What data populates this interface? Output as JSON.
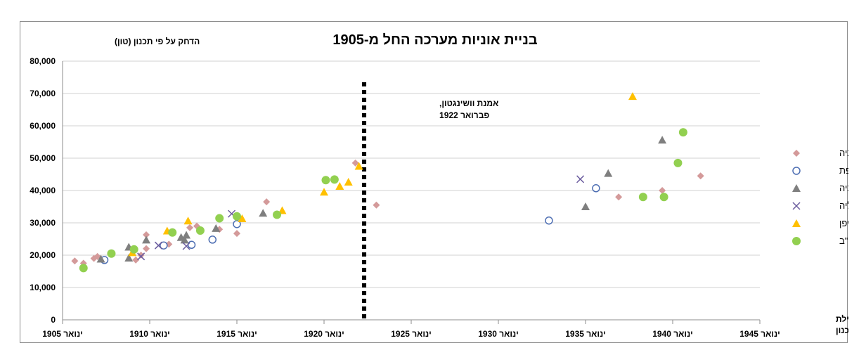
{
  "chart_data": {
    "type": "scatter",
    "title": "בניית אוניות מערכה החל מ-1905",
    "ylabel": "הדחק על פי תכנון (טון)",
    "xlabel": "חודש תחילת בנייה או תכנון",
    "ylim": [
      0,
      80000
    ],
    "yticks": [
      0,
      10000,
      20000,
      30000,
      40000,
      50000,
      60000,
      70000,
      80000
    ],
    "ytick_labels": [
      "0",
      "10,000",
      "20,000",
      "30,000",
      "40,000",
      "50,000",
      "60,000",
      "70,000",
      "80,000"
    ],
    "xlim": [
      1905,
      1945
    ],
    "xticks": [
      1905,
      1910,
      1915,
      1920,
      1925,
      1930,
      1935,
      1940,
      1945
    ],
    "xtick_labels": [
      "ינואר 1905",
      "ינואר 1910",
      "ינואר 1915",
      "ינואר 1920",
      "ינואר 1925",
      "ינואר 1930",
      "ינואר 1935",
      "ינואר 1940",
      "ינואר 1945"
    ],
    "grid": true,
    "legend_position": "right",
    "annotation": {
      "x": 1922.3,
      "lines": [
        "אמנת וושינגטון,",
        "פברואר 1922"
      ]
    },
    "series": [
      {
        "name": "בריטניה",
        "marker": "diamond",
        "color": "#d49a9a",
        "points": [
          [
            1905.7,
            18200
          ],
          [
            1906.2,
            17500
          ],
          [
            1906.8,
            19000
          ],
          [
            1907.0,
            19600
          ],
          [
            1909.2,
            18500
          ],
          [
            1909.5,
            20000
          ],
          [
            1909.8,
            22000
          ],
          [
            1909.8,
            26300
          ],
          [
            1911.1,
            23400
          ],
          [
            1912.3,
            28500
          ],
          [
            1912.7,
            29000
          ],
          [
            1914.0,
            28000
          ],
          [
            1915.0,
            26700
          ],
          [
            1916.7,
            36500
          ],
          [
            1921.8,
            48500
          ],
          [
            1923.0,
            35500
          ],
          [
            1936.9,
            38000
          ],
          [
            1939.4,
            40000
          ],
          [
            1941.6,
            44500
          ]
        ]
      },
      {
        "name": "צרפת",
        "marker": "circle-open",
        "color": "#4e6fb3",
        "points": [
          [
            1907.4,
            18500
          ],
          [
            1910.8,
            23000
          ],
          [
            1912.4,
            23200
          ],
          [
            1913.6,
            24800
          ],
          [
            1915.0,
            29600
          ],
          [
            1932.9,
            30700
          ],
          [
            1935.6,
            40700
          ]
        ]
      },
      {
        "name": "גרמניה",
        "marker": "triangle",
        "color": "#7f7f7f",
        "points": [
          [
            1907.2,
            18800
          ],
          [
            1908.8,
            19100
          ],
          [
            1908.8,
            22500
          ],
          [
            1909.8,
            24700
          ],
          [
            1912.0,
            24700
          ],
          [
            1912.1,
            26200
          ],
          [
            1911.8,
            25500
          ],
          [
            1913.8,
            28300
          ],
          [
            1916.5,
            33000
          ],
          [
            1935.0,
            35000
          ],
          [
            1936.3,
            45300
          ],
          [
            1939.4,
            55600
          ]
        ]
      },
      {
        "name": "איטליה",
        "marker": "x",
        "color": "#6a5b9e",
        "points": [
          [
            1909.5,
            19600
          ],
          [
            1910.5,
            23000
          ],
          [
            1912.1,
            22800
          ],
          [
            1914.7,
            32800
          ],
          [
            1934.7,
            43500
          ]
        ]
      },
      {
        "name": "יפן",
        "marker": "triangle",
        "color": "#ffc000",
        "points": [
          [
            1909.0,
            20800
          ],
          [
            1911.0,
            27500
          ],
          [
            1912.2,
            30600
          ],
          [
            1915.3,
            31300
          ],
          [
            1917.6,
            33800
          ],
          [
            1920.0,
            39500
          ],
          [
            1920.9,
            41300
          ],
          [
            1921.4,
            42600
          ],
          [
            1922.0,
            47500
          ],
          [
            1937.7,
            69100
          ]
        ]
      },
      {
        "name": "ארה\"ב",
        "marker": "circle",
        "color": "#92d050",
        "points": [
          [
            1906.2,
            16000
          ],
          [
            1907.8,
            20500
          ],
          [
            1909.1,
            21800
          ],
          [
            1911.3,
            27000
          ],
          [
            1912.9,
            27600
          ],
          [
            1914.0,
            31400
          ],
          [
            1915.0,
            32000
          ],
          [
            1917.3,
            32500
          ],
          [
            1920.1,
            43200
          ],
          [
            1920.6,
            43400
          ],
          [
            1938.3,
            38000
          ],
          [
            1939.5,
            38000
          ],
          [
            1940.3,
            48500
          ],
          [
            1940.6,
            58000
          ]
        ]
      }
    ]
  }
}
